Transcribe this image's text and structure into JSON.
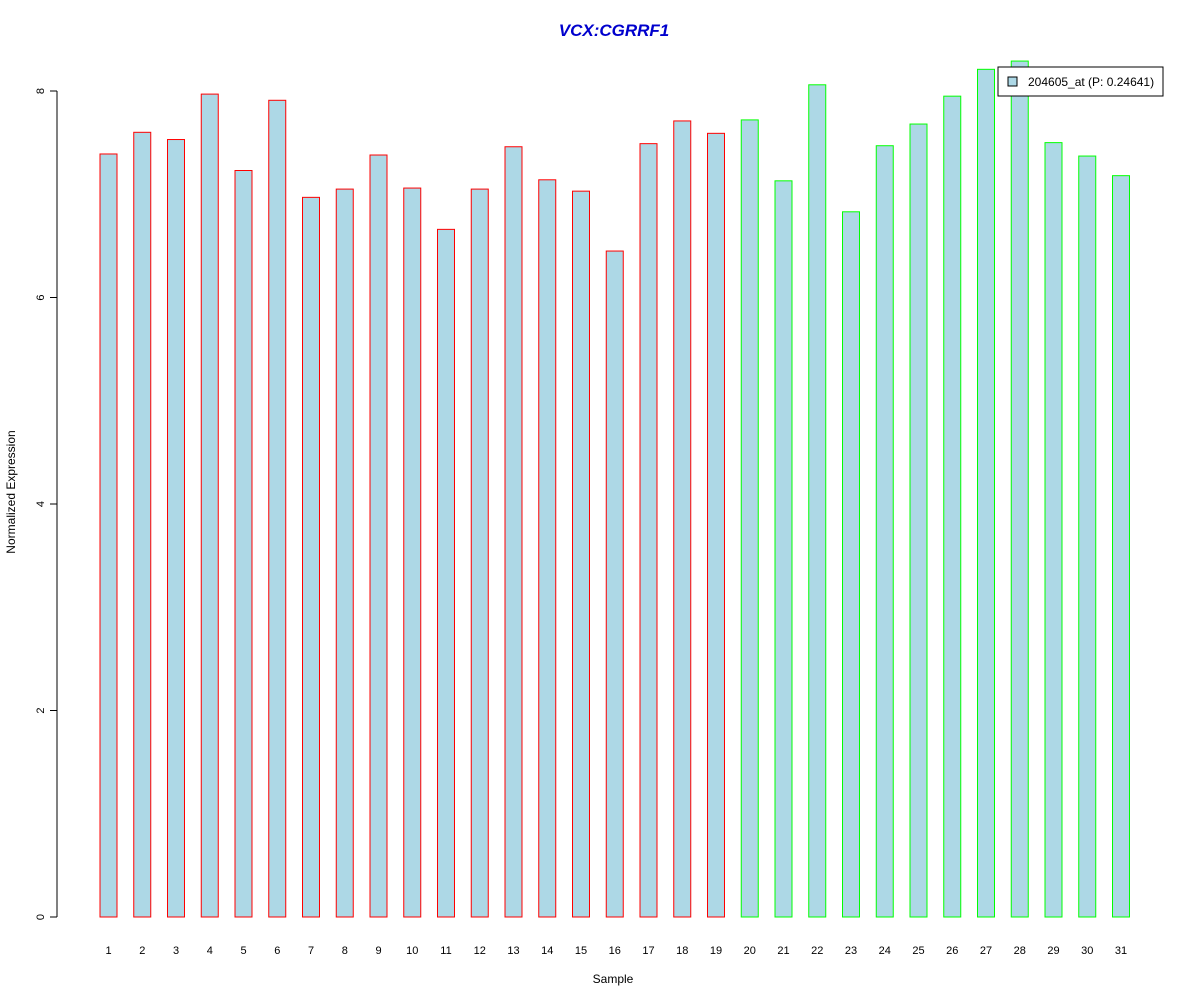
{
  "chart_data": {
    "type": "bar",
    "title": "VCX:CGRRF1",
    "xlabel": "Sample",
    "ylabel": "Normalized Expression",
    "ylim": [
      0,
      8.3
    ],
    "yticks": [
      0,
      2,
      4,
      6,
      8
    ],
    "grid": false,
    "legend_position": "top-right",
    "legend": {
      "label": "204605_at (P: 0.24641)"
    },
    "categories": [
      "1",
      "2",
      "3",
      "4",
      "5",
      "6",
      "7",
      "8",
      "9",
      "10",
      "11",
      "12",
      "13",
      "14",
      "15",
      "16",
      "17",
      "18",
      "19",
      "20",
      "21",
      "22",
      "23",
      "24",
      "25",
      "26",
      "27",
      "28",
      "29",
      "30",
      "31"
    ],
    "values": [
      7.39,
      7.6,
      7.53,
      7.97,
      7.23,
      7.91,
      6.97,
      7.05,
      7.38,
      7.06,
      6.66,
      7.05,
      7.46,
      7.14,
      7.03,
      6.45,
      7.49,
      7.71,
      7.59,
      7.72,
      7.13,
      8.06,
      6.83,
      7.47,
      7.68,
      7.95,
      8.21,
      8.29,
      7.5,
      7.37,
      7.18
    ],
    "groups": [
      "red",
      "red",
      "red",
      "red",
      "red",
      "red",
      "red",
      "red",
      "red",
      "red",
      "red",
      "red",
      "red",
      "red",
      "red",
      "red",
      "red",
      "red",
      "red",
      "green",
      "green",
      "green",
      "green",
      "green",
      "green",
      "green",
      "green",
      "green",
      "green",
      "green",
      "green"
    ]
  },
  "colors": {
    "bar_fill": "#add8e6",
    "red_border": "#ff0000",
    "green_border": "#00ff00",
    "title": "#0000cd",
    "axis": "#000000"
  }
}
